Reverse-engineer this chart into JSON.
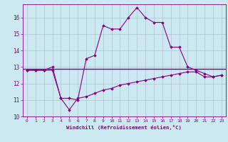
{
  "xlabel": "Windchill (Refroidissement éolien,°C)",
  "bg_color": "#cce8f0",
  "line_color": "#880088",
  "grid_color": "#aabbcc",
  "xlim": [
    -0.5,
    23.5
  ],
  "ylim": [
    10,
    16.8
  ],
  "yticks": [
    10,
    11,
    12,
    13,
    14,
    15,
    16
  ],
  "xticks": [
    0,
    1,
    2,
    3,
    4,
    5,
    6,
    7,
    8,
    9,
    10,
    11,
    12,
    13,
    14,
    15,
    16,
    17,
    18,
    19,
    20,
    21,
    22,
    23
  ],
  "line1_x": [
    0,
    1,
    2,
    3,
    4,
    5,
    6,
    7,
    8,
    9,
    10,
    11,
    12,
    13,
    14,
    15,
    16,
    17,
    18,
    19,
    20,
    21,
    22,
    23
  ],
  "line1_y": [
    12.8,
    12.8,
    12.8,
    13.0,
    11.1,
    11.1,
    11.0,
    13.5,
    13.7,
    15.5,
    15.3,
    15.3,
    16.0,
    16.6,
    16.0,
    15.7,
    15.7,
    14.2,
    14.2,
    13.0,
    12.8,
    12.6,
    12.4,
    12.5
  ],
  "line2_y": 12.9,
  "line3_x": [
    0,
    1,
    2,
    3,
    4,
    5,
    6,
    7,
    8,
    9,
    10,
    11,
    12,
    13,
    14,
    15,
    16,
    17,
    18,
    19,
    20,
    21,
    22,
    23
  ],
  "line3_y": [
    12.8,
    12.8,
    12.8,
    12.8,
    11.1,
    10.4,
    11.1,
    11.2,
    11.4,
    11.6,
    11.7,
    11.9,
    12.0,
    12.1,
    12.2,
    12.3,
    12.4,
    12.5,
    12.6,
    12.7,
    12.7,
    12.4,
    12.4,
    12.5
  ]
}
